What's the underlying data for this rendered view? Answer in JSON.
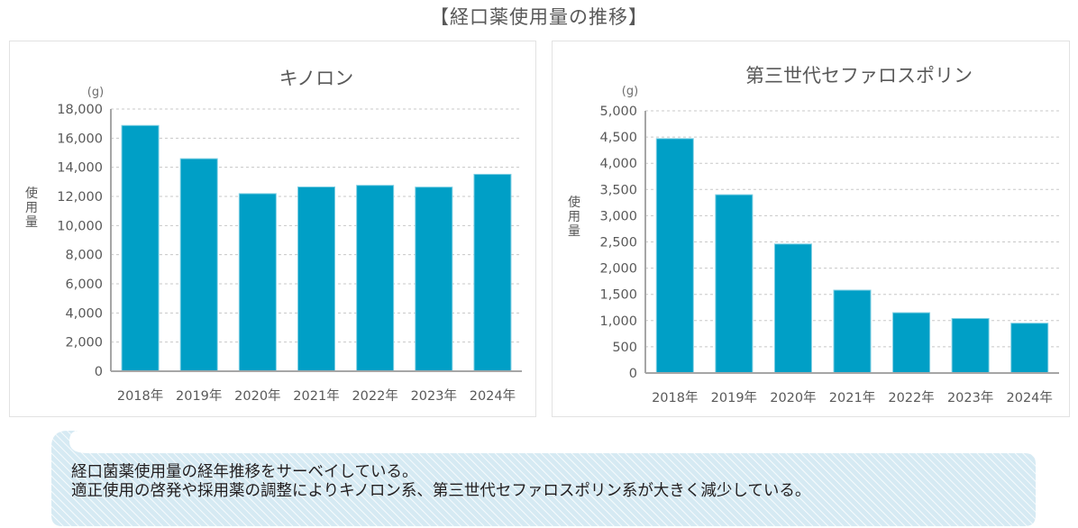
{
  "page": {
    "title": "【経口薬使用量の推移】"
  },
  "callout": {
    "lines": [
      "経口菌薬使用量の経年推移をサーベイしている。",
      "適正使用の啓発や採用薬の調整によりキノロン系、第三世代セファロスポリン系が大きく減少している。"
    ],
    "colors": {
      "fill": "#d6eaf3",
      "stripe": "#ffffff",
      "text": "#231f20"
    }
  },
  "chart_data": [
    {
      "type": "bar",
      "title": "キノロン",
      "unit": "(g)",
      "ylabel": "使用量",
      "xlabel": "",
      "categories": [
        "2018年",
        "2019年",
        "2020年",
        "2021年",
        "2022年",
        "2023年",
        "2024年"
      ],
      "values": [
        16870,
        14590,
        12190,
        12650,
        12760,
        12640,
        13520
      ],
      "ylim": [
        0,
        18000
      ],
      "yticks": [
        0,
        2000,
        4000,
        6000,
        8000,
        10000,
        12000,
        14000,
        16000,
        18000
      ],
      "ytick_labels": [
        "0",
        "2,000",
        "4,000",
        "6,000",
        "8,000",
        "10,000",
        "12,000",
        "14,000",
        "16,000",
        "18,000"
      ],
      "grid": true,
      "legend": "none",
      "color": "#009fc6"
    },
    {
      "type": "bar",
      "title": "第三世代セファロスポリン",
      "unit": "(g)",
      "ylabel": "使用量",
      "xlabel": "",
      "categories": [
        "2018年",
        "2019年",
        "2020年",
        "2021年",
        "2022年",
        "2023年",
        "2024年"
      ],
      "values": [
        4470,
        3400,
        2460,
        1580,
        1150,
        1040,
        950
      ],
      "ylim": [
        0,
        5000
      ],
      "yticks": [
        0,
        500,
        1000,
        1500,
        2000,
        2500,
        3000,
        3500,
        4000,
        4500,
        5000
      ],
      "ytick_labels": [
        "0",
        "500",
        "1,000",
        "1,500",
        "2,000",
        "2,500",
        "3,000",
        "3,500",
        "4,000",
        "4,500",
        "5,000"
      ],
      "grid": true,
      "legend": "none",
      "color": "#009fc6"
    }
  ]
}
